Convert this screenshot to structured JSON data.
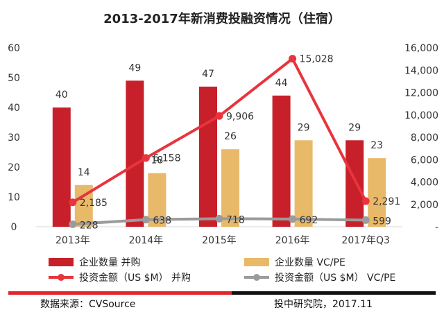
{
  "chart_data": {
    "type": "bar+line",
    "title": "2013-2017年新消费投融资情况（住宿）",
    "categories": [
      "2013年",
      "2014年",
      "2015年",
      "2016年",
      "2017年Q3"
    ],
    "y_left": {
      "min": 0,
      "max": 60,
      "ticks": [
        "0",
        "10",
        "20",
        "30",
        "40",
        "50",
        "60"
      ]
    },
    "y_right": {
      "min": 0,
      "max": 16000,
      "ticks": [
        "-",
        "2,000",
        "4,000",
        "6,000",
        "8,000",
        "10,000",
        "12,000",
        "14,000",
        "16,000"
      ]
    },
    "bar_series": [
      {
        "name": "企业数量 并购",
        "color": "#c8202a",
        "values": [
          40,
          49,
          47,
          44,
          29
        ],
        "labels": [
          "40",
          "49",
          "47",
          "44",
          "29"
        ]
      },
      {
        "name": "企业数量 VC/PE",
        "color": "#e9b96a",
        "values": [
          14,
          18,
          26,
          29,
          23
        ],
        "labels": [
          "14",
          "18",
          "26",
          "29",
          "23"
        ]
      }
    ],
    "line_series": [
      {
        "name": "投资金额（US $M） 并购",
        "color": "#e8343c",
        "values": [
          2185,
          6158,
          9906,
          15028,
          2291
        ],
        "labels": [
          "2,185",
          "6,158",
          "9,906",
          "15,028",
          "2,291"
        ]
      },
      {
        "name": "投资金额（US $M） VC/PE",
        "color": "#9b9b9b",
        "values": [
          228,
          638,
          718,
          692,
          599
        ],
        "labels": [
          "228",
          "638",
          "718",
          "692",
          "599"
        ]
      }
    ],
    "legend_position": "bottom",
    "grid": false
  },
  "footer": {
    "source": "数据来源：CVSource",
    "credit": "投中研究院，2017.11"
  }
}
